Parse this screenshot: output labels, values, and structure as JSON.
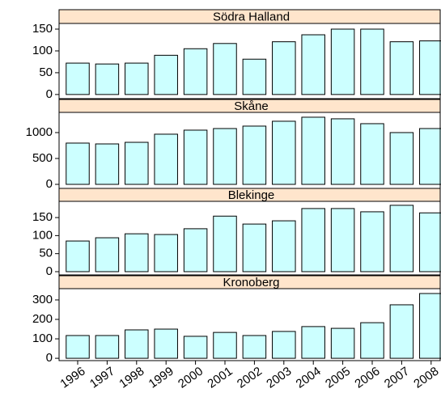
{
  "chart_data": {
    "type": "bar",
    "color": "#ccffff",
    "strip_color": "#ffe5cc",
    "categories": [
      "1996",
      "1997",
      "1998",
      "1999",
      "2000",
      "2001",
      "2002",
      "2003",
      "2004",
      "2005",
      "2006",
      "2007",
      "2008"
    ],
    "panels": [
      {
        "title": "Södra Halland",
        "values": [
          72,
          70,
          72,
          90,
          105,
          117,
          81,
          121,
          137,
          150,
          150,
          121,
          123
        ],
        "ylim": [
          -9.5,
          163
        ],
        "yticks": [
          0,
          50,
          100,
          150
        ]
      },
      {
        "title": "Skåne",
        "values": [
          797,
          781,
          812,
          969,
          1047,
          1078,
          1125,
          1219,
          1297,
          1266,
          1172,
          1000,
          1078
        ],
        "ylim": [
          -78,
          1390
        ],
        "yticks": [
          0,
          500,
          1000
        ]
      },
      {
        "title": "Blekinge",
        "values": [
          85,
          94,
          105,
          103,
          119,
          154,
          132,
          141,
          175,
          175,
          166,
          184,
          163
        ],
        "ylim": [
          -9,
          195
        ],
        "yticks": [
          0,
          50,
          100,
          150
        ]
      },
      {
        "title": "Kronoberg",
        "values": [
          117,
          117,
          146,
          150,
          113,
          133,
          117,
          138,
          163,
          154,
          183,
          275,
          333
        ],
        "ylim": [
          -12,
          358
        ],
        "yticks": [
          0,
          100,
          200,
          300
        ]
      }
    ]
  }
}
